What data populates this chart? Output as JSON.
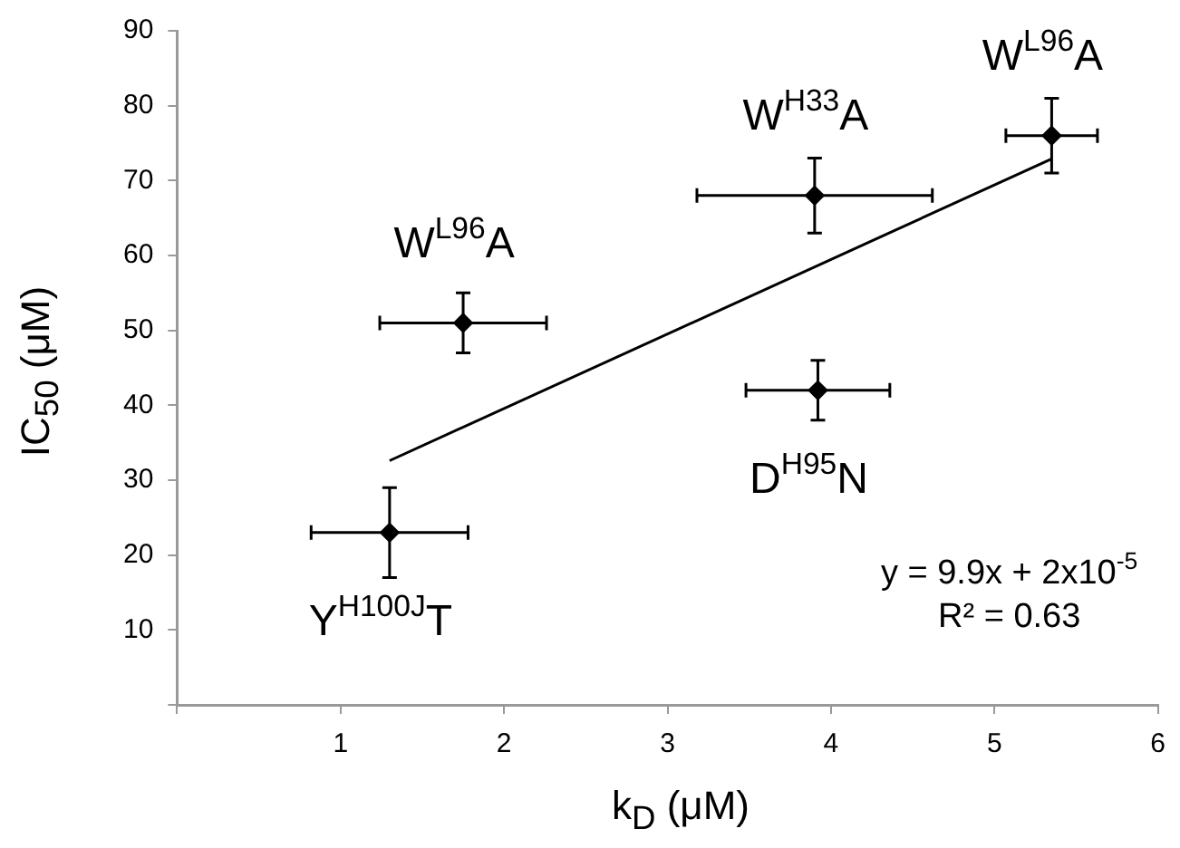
{
  "chart_data": {
    "type": "scatter",
    "xlabel": "k$_{D}$ (μM)",
    "ylabel": "IC$_{50}$ (μM)",
    "xlim": [
      0,
      6
    ],
    "xticks": [
      {
        "value": 0,
        "label": null
      },
      1,
      2,
      3,
      4,
      5,
      6
    ],
    "ylim": [
      0,
      90
    ],
    "yticks": [
      {
        "value": 0,
        "label": null
      },
      10,
      20,
      30,
      40,
      50,
      60,
      70,
      80,
      90
    ],
    "grid": false,
    "legend": false,
    "marker": "diamond",
    "series": [
      {
        "color": "#000000",
        "x": [
          1.3,
          1.75,
          3.9,
          3.92,
          5.35
        ],
        "values": [
          23,
          51,
          68,
          42,
          76
        ],
        "errors": [
          6,
          4,
          5,
          4,
          5
        ],
        "xerrors": [
          0.48,
          0.51,
          0.72,
          0.44,
          0.28
        ]
      },
      {
        "type": "line",
        "color": "#000000",
        "marker": "none",
        "x": [
          1.3,
          5.35
        ],
        "values": [
          32.6,
          72.9
        ]
      }
    ],
    "annotations": [
      {
        "text": "Y$^{H100J}$T",
        "x": 1.3,
        "y": 23
      },
      {
        "text": "W$^{L96}$A",
        "x": 1.75,
        "y": 51
      },
      {
        "text": "W$^{H33}$A",
        "x": 3.9,
        "y": 68
      },
      {
        "text": "D$^{H95}$N",
        "x": 3.92,
        "y": 42
      },
      {
        "text": "W$^{L96}$A",
        "x": 5.35,
        "y": 76
      },
      "y = 9.9x + 2x10$^{-5}$",
      "R² = 0.63"
    ]
  }
}
